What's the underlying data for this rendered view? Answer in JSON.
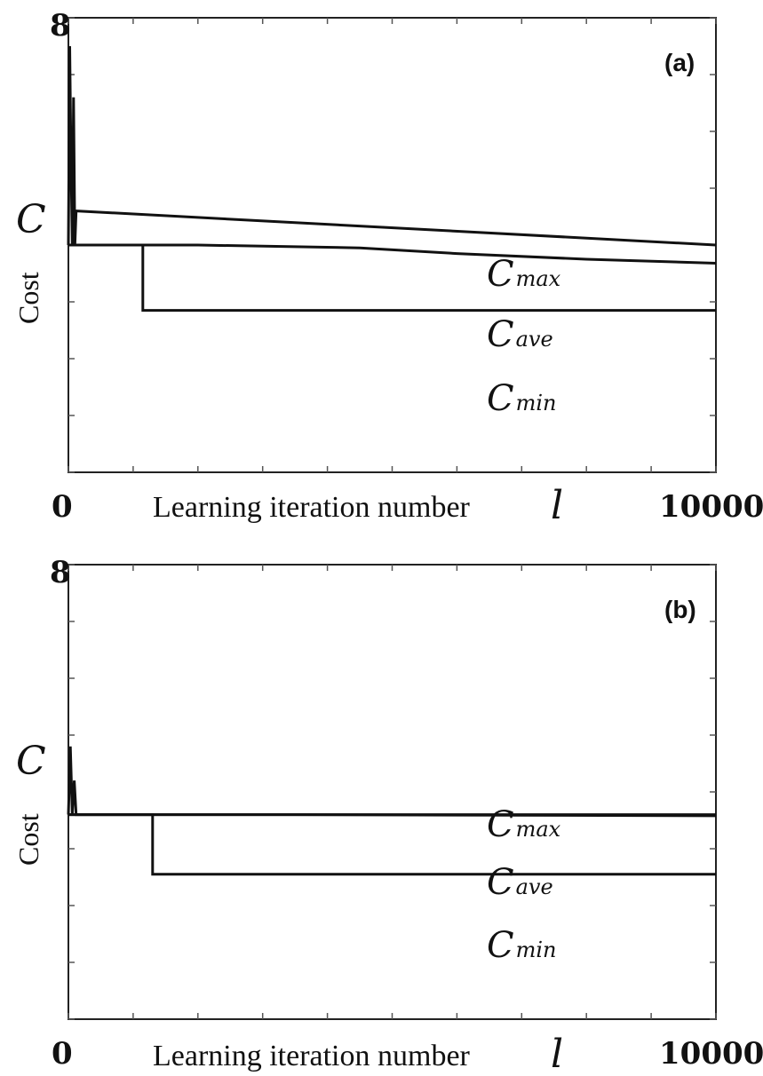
{
  "chart_data": [
    {
      "type": "line",
      "panel_label": "(a)",
      "xlabel": "Learning iteration number",
      "xlabel_symbol": "l",
      "ylabel": "Cost",
      "ylabel_symbol": "C",
      "xlim": [
        0,
        10000
      ],
      "ylim": [
        0,
        8
      ],
      "x_tick_labels": [
        "0",
        "10000"
      ],
      "y_tick_labels": [
        "8"
      ],
      "x_tick_values": [
        0,
        1000,
        2000,
        3000,
        4000,
        5000,
        6000,
        7000,
        8000,
        9000,
        10000
      ],
      "y_tick_values": [
        0,
        1,
        2,
        3,
        4,
        5,
        6,
        7,
        8
      ],
      "series": [
        {
          "name": "C",
          "sub": "max",
          "x": [
            0,
            20,
            40,
            60,
            80,
            100,
            120,
            10000
          ],
          "y": [
            4.0,
            7.5,
            5.5,
            4.0,
            6.6,
            4.0,
            4.6,
            4.0
          ]
        },
        {
          "name": "C",
          "sub": "ave",
          "x": [
            0,
            2000,
            4500,
            6000,
            8000,
            10000
          ],
          "y": [
            4.0,
            4.0,
            3.95,
            3.85,
            3.75,
            3.68
          ]
        },
        {
          "name": "C",
          "sub": "min",
          "x": [
            0,
            1150,
            1150,
            10000
          ],
          "y": [
            4.0,
            4.0,
            2.85,
            2.85
          ]
        }
      ]
    },
    {
      "type": "line",
      "panel_label": "(b)",
      "xlabel": "Learning iteration number",
      "xlabel_symbol": "l",
      "ylabel": "Cost",
      "ylabel_symbol": "C",
      "xlim": [
        0,
        10000
      ],
      "ylim": [
        0,
        8
      ],
      "x_tick_labels": [
        "0",
        "10000"
      ],
      "y_tick_labels": [
        "8"
      ],
      "x_tick_values": [
        0,
        1000,
        2000,
        3000,
        4000,
        5000,
        6000,
        7000,
        8000,
        9000,
        10000
      ],
      "y_tick_values": [
        0,
        1,
        2,
        3,
        4,
        5,
        6,
        7,
        8
      ],
      "series": [
        {
          "name": "C",
          "sub": "max",
          "x": [
            0,
            30,
            60,
            90,
            120,
            10000
          ],
          "y": [
            3.6,
            4.8,
            3.6,
            4.2,
            3.6,
            3.6
          ]
        },
        {
          "name": "C",
          "sub": "ave",
          "x": [
            0,
            3500,
            10000
          ],
          "y": [
            3.6,
            3.6,
            3.58
          ]
        },
        {
          "name": "C",
          "sub": "min",
          "x": [
            0,
            1300,
            1300,
            10000
          ],
          "y": [
            3.6,
            3.6,
            2.55,
            2.55
          ]
        }
      ]
    }
  ]
}
